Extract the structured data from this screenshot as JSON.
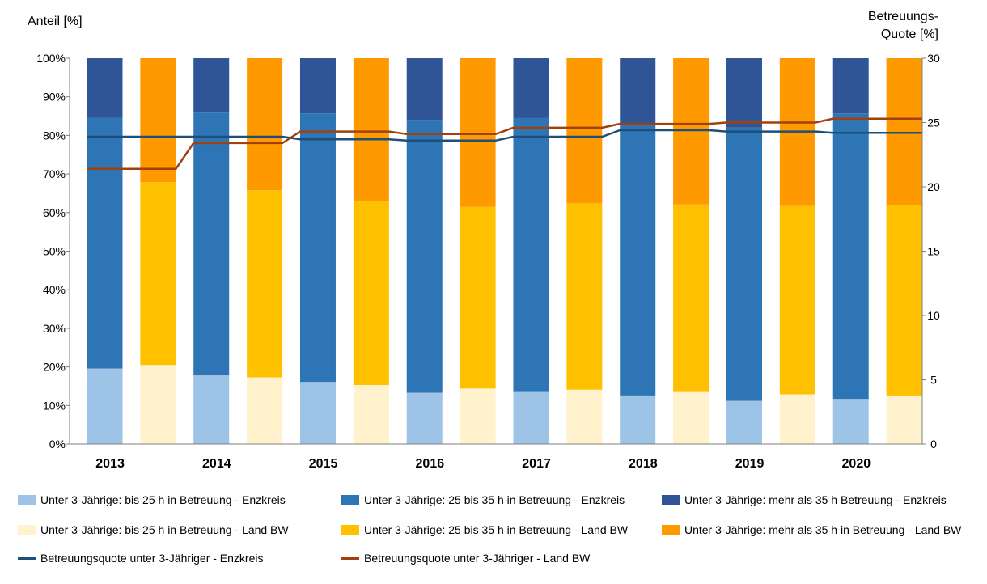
{
  "chart_data": {
    "type": "bar",
    "subtype": "stacked-100-with-lines",
    "left_axis_title": "Anteil [%]",
    "right_axis_title_line1": "Betreuungs-",
    "right_axis_title_line2": "Quote [%]",
    "categories": [
      "2013",
      "2014",
      "2015",
      "2016",
      "2017",
      "2018",
      "2019",
      "2020"
    ],
    "left_ylim": [
      0,
      100
    ],
    "left_ticks": [
      "0%",
      "10%",
      "20%",
      "30%",
      "40%",
      "50%",
      "60%",
      "70%",
      "80%",
      "90%",
      "100%"
    ],
    "right_ylim": [
      0,
      30
    ],
    "right_ticks": [
      "0",
      "5",
      "10",
      "15",
      "20",
      "25",
      "30"
    ],
    "grid": false,
    "legend_position": "bottom",
    "bar_groups": [
      {
        "name": "Enzkreis",
        "series": [
          {
            "name": "Unter 3-Jährige: bis 25 h in Betreuung - Enzkreis",
            "color": "#9DC3E6",
            "values": [
              19.6,
              17.8,
              16.1,
              13.3,
              13.5,
              12.6,
              11.2,
              11.7
            ]
          },
          {
            "name": "Unter 3-Jährige: 25 bis 35 h in Betreuung - Enzkreis",
            "color": "#2E75B6",
            "values": [
              65.0,
              68.1,
              69.6,
              70.7,
              71.0,
              70.2,
              70.8,
              74.0
            ]
          },
          {
            "name": "Unter 3-Jährige: mehr als 35 h Betreuung - Enzkreis",
            "color": "#2F5597",
            "values": [
              15.4,
              14.1,
              14.3,
              16.0,
              15.5,
              17.2,
              18.0,
              14.3
            ]
          }
        ]
      },
      {
        "name": "Land BW",
        "series": [
          {
            "name": "Unter 3-Jährige: bis 25 h in Betreuung - Land BW",
            "color": "#FFF2CC",
            "values": [
              20.5,
              17.3,
              15.3,
              14.4,
              14.1,
              13.5,
              12.9,
              12.6
            ]
          },
          {
            "name": "Unter 3-Jährige: 25 bis 35 h in Betreuung - Land BW",
            "color": "#FFC000",
            "values": [
              47.4,
              48.5,
              47.8,
              47.1,
              48.3,
              48.6,
              48.8,
              49.4
            ]
          },
          {
            "name": "Unter 3-Jährige: mehr als 35 h in Betreuung - Land BW",
            "color": "#FF9900",
            "values": [
              32.1,
              34.2,
              36.9,
              38.5,
              37.6,
              37.9,
              38.3,
              38.0
            ]
          }
        ]
      }
    ],
    "lines": [
      {
        "name": "Betreuungsquote unter 3-Jähriger - Enzkreis",
        "color": "#1F4E79",
        "axis": "right",
        "values": [
          23.9,
          23.9,
          23.7,
          23.6,
          23.9,
          24.4,
          24.3,
          24.2
        ]
      },
      {
        "name": "Betreuungsquote unter 3-Jähriger - Land BW",
        "color": "#A0410D",
        "axis": "right",
        "values": [
          21.4,
          23.4,
          24.3,
          24.1,
          24.6,
          24.9,
          25.0,
          25.3
        ]
      }
    ]
  }
}
